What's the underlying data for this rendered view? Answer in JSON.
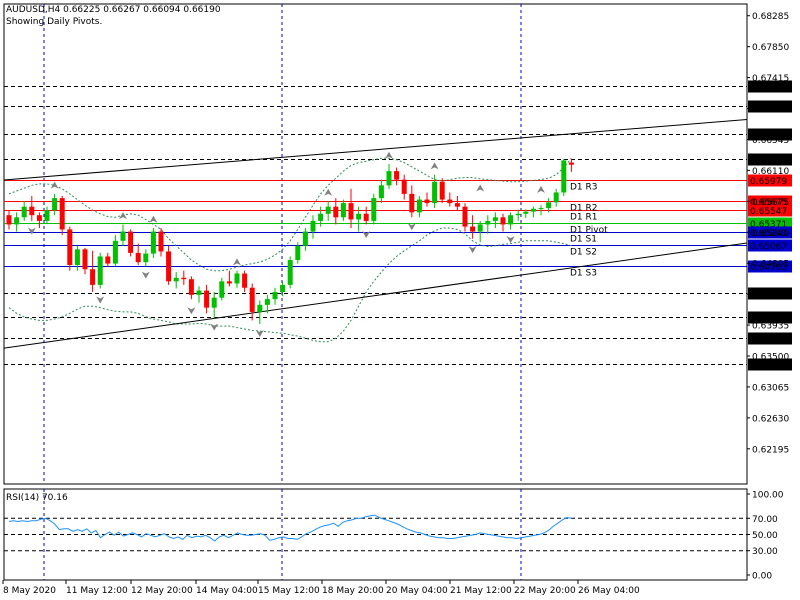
{
  "header": {
    "symbol_line": "AUDUSD,H4  0.66225 0.66267 0.66094 0.66190",
    "indicator_note": "Showing Daily Pivots."
  },
  "rsi_header": "RSI(14) 70.16",
  "colors": {
    "bull": "#00c000",
    "bear": "#ff0000",
    "bands": "#2e8b57",
    "pivot_res": "#ff0000",
    "pivot_mid": "#00c000",
    "pivot_sup": "#0000cc",
    "level_line": "#000000",
    "grid_v": "#0000cc",
    "rsi_line": "#1e90ff",
    "fractal": "#808080"
  },
  "chart_data": [
    {
      "type": "candlestick",
      "title": "AUDUSD,H4",
      "ylim": [
        0.617,
        0.6845
      ],
      "price_ticks": [
        "0.68285",
        "0.67850",
        "0.67415",
        "0.66980",
        "0.66545",
        "0.66110",
        "0.65675",
        "0.65240",
        "0.64805",
        "0.64370",
        "0.63935",
        "0.63500",
        "0.63065",
        "0.62630",
        "0.62195"
      ],
      "x_labels": [
        "8 May 2020",
        "11 May 12:00",
        "12 May 20:00",
        "14 May 04:00",
        "15 May 12:00",
        "18 May 20:00",
        "20 May 04:00",
        "21 May 12:00",
        "22 May 20:00",
        "26 May 04:00"
      ],
      "horizontal_levels": [
        {
          "price": 0.67297,
          "label": "0.67297",
          "kind": "level"
        },
        {
          "price": 0.67018,
          "label": "0.67018",
          "kind": "level"
        },
        {
          "price": 0.66624,
          "label": "0.66624",
          "kind": "level"
        },
        {
          "price": 0.66268,
          "label": "0.66268",
          "kind": "level"
        },
        {
          "price": 0.65979,
          "label": "0.65979",
          "kind": "res",
          "name": "D1 R3"
        },
        {
          "price": 0.65675,
          "label": "0.65675",
          "kind": "res",
          "name": "D1 R2"
        },
        {
          "price": 0.65547,
          "label": "0.65547",
          "kind": "res",
          "name": "D1 R1"
        },
        {
          "price": 0.65371,
          "label": "0.65371",
          "kind": "mid",
          "name": "D1 Pivot"
        },
        {
          "price": 0.65243,
          "label": "0.65243",
          "kind": "sup",
          "name": "D1 S1"
        },
        {
          "price": 0.65067,
          "label": "0.65067",
          "kind": "sup",
          "name": "D1 S2"
        },
        {
          "price": 0.64763,
          "label": "0.64763",
          "kind": "sup",
          "name": "D1 S3"
        },
        {
          "price": 0.64387,
          "label": "0.64387",
          "kind": "level"
        },
        {
          "price": 0.64047,
          "label": "0.64047",
          "kind": "level"
        },
        {
          "price": 0.63758,
          "label": "0.63758",
          "kind": "level"
        },
        {
          "price": 0.63384,
          "label": "0.63384",
          "kind": "level"
        }
      ],
      "trendlines": [
        {
          "name": "upper-trendline",
          "from": {
            "bar": 0,
            "price": 0.6598
          },
          "to": {
            "bar": 78,
            "price": 0.6666
          }
        },
        {
          "name": "lower-trendline",
          "from": {
            "bar": 0,
            "price": 0.6362
          },
          "to": {
            "bar": 78,
            "price": 0.648
          }
        }
      ],
      "candles": [
        [
          0.6548,
          0.6555,
          0.6528,
          0.6535
        ],
        [
          0.6535,
          0.6552,
          0.6525,
          0.6545
        ],
        [
          0.6545,
          0.6568,
          0.654,
          0.656
        ],
        [
          0.656,
          0.6575,
          0.654,
          0.6548
        ],
        [
          0.6548,
          0.6552,
          0.653,
          0.654
        ],
        [
          0.654,
          0.656,
          0.6536,
          0.6555
        ],
        [
          0.6555,
          0.6578,
          0.6548,
          0.6572
        ],
        [
          0.6572,
          0.6575,
          0.652,
          0.6528
        ],
        [
          0.6528,
          0.6532,
          0.647,
          0.6478
        ],
        [
          0.6478,
          0.6505,
          0.647,
          0.65
        ],
        [
          0.65,
          0.6502,
          0.6465,
          0.6472
        ],
        [
          0.6472,
          0.6498,
          0.644,
          0.645
        ],
        [
          0.645,
          0.6495,
          0.6445,
          0.649
        ],
        [
          0.649,
          0.6495,
          0.6475,
          0.648
        ],
        [
          0.648,
          0.652,
          0.6476,
          0.6512
        ],
        [
          0.6512,
          0.6535,
          0.6505,
          0.6525
        ],
        [
          0.6525,
          0.6528,
          0.649,
          0.6495
        ],
        [
          0.6495,
          0.6508,
          0.6478,
          0.6482
        ],
        [
          0.6482,
          0.65,
          0.6476,
          0.6494
        ],
        [
          0.6494,
          0.653,
          0.6488,
          0.6525
        ],
        [
          0.6525,
          0.653,
          0.649,
          0.6497
        ],
        [
          0.6497,
          0.6505,
          0.645,
          0.6455
        ],
        [
          0.6455,
          0.6468,
          0.6445,
          0.646
        ],
        [
          0.646,
          0.647,
          0.645,
          0.6458
        ],
        [
          0.6458,
          0.6462,
          0.643,
          0.6436
        ],
        [
          0.6436,
          0.6448,
          0.6425,
          0.6442
        ],
        [
          0.6442,
          0.645,
          0.641,
          0.6418
        ],
        [
          0.6418,
          0.644,
          0.6403,
          0.6432
        ],
        [
          0.6432,
          0.646,
          0.6428,
          0.6455
        ],
        [
          0.6455,
          0.647,
          0.6448,
          0.6452
        ],
        [
          0.6452,
          0.647,
          0.6446,
          0.6466
        ],
        [
          0.6466,
          0.647,
          0.644,
          0.6446
        ],
        [
          0.6446,
          0.6452,
          0.64,
          0.6412
        ],
        [
          0.6412,
          0.6428,
          0.6395,
          0.6422
        ],
        [
          0.6422,
          0.6436,
          0.641,
          0.643
        ],
        [
          0.643,
          0.6446,
          0.6422,
          0.644
        ],
        [
          0.644,
          0.6455,
          0.6434,
          0.645
        ],
        [
          0.645,
          0.649,
          0.6445,
          0.6485
        ],
        [
          0.6485,
          0.651,
          0.648,
          0.6505
        ],
        [
          0.6505,
          0.653,
          0.6498,
          0.6525
        ],
        [
          0.6525,
          0.6548,
          0.6515,
          0.654
        ],
        [
          0.654,
          0.656,
          0.6532,
          0.655
        ],
        [
          0.655,
          0.6568,
          0.654,
          0.656
        ],
        [
          0.656,
          0.6572,
          0.6535,
          0.6545
        ],
        [
          0.6545,
          0.657,
          0.654,
          0.6565
        ],
        [
          0.6565,
          0.6585,
          0.653,
          0.6542
        ],
        [
          0.6542,
          0.656,
          0.6525,
          0.655
        ],
        [
          0.655,
          0.656,
          0.6535,
          0.654
        ],
        [
          0.654,
          0.6578,
          0.6535,
          0.6572
        ],
        [
          0.6572,
          0.6598,
          0.6565,
          0.659
        ],
        [
          0.659,
          0.662,
          0.6585,
          0.661
        ],
        [
          0.661,
          0.6615,
          0.659,
          0.6598
        ],
        [
          0.6598,
          0.6605,
          0.657,
          0.6578
        ],
        [
          0.6578,
          0.659,
          0.6545,
          0.6552
        ],
        [
          0.6552,
          0.6575,
          0.6545,
          0.657
        ],
        [
          0.657,
          0.658,
          0.656,
          0.6565
        ],
        [
          0.6565,
          0.6605,
          0.6558,
          0.6595
        ],
        [
          0.6595,
          0.66,
          0.6565,
          0.657
        ],
        [
          0.657,
          0.658,
          0.656,
          0.6565
        ],
        [
          0.6565,
          0.6575,
          0.6555,
          0.656
        ],
        [
          0.656,
          0.6565,
          0.6525,
          0.6532
        ],
        [
          0.6532,
          0.6548,
          0.6515,
          0.6525
        ],
        [
          0.6525,
          0.654,
          0.651,
          0.6535
        ],
        [
          0.6535,
          0.6548,
          0.6522,
          0.654
        ],
        [
          0.654,
          0.6552,
          0.653,
          0.6545
        ],
        [
          0.6545,
          0.655,
          0.6525,
          0.6535
        ],
        [
          0.6535,
          0.6552,
          0.6528,
          0.6548
        ],
        [
          0.6548,
          0.6556,
          0.654,
          0.655
        ],
        [
          0.655,
          0.6556,
          0.6544,
          0.6553
        ],
        [
          0.6553,
          0.656,
          0.6545,
          0.6557
        ],
        [
          0.6557,
          0.6562,
          0.6548,
          0.6558
        ],
        [
          0.6558,
          0.6572,
          0.6552,
          0.6566
        ],
        [
          0.6566,
          0.6585,
          0.656,
          0.658
        ],
        [
          0.658,
          0.6627,
          0.6575,
          0.6625
        ],
        [
          0.6622,
          0.6627,
          0.6609,
          0.6619
        ]
      ],
      "fractals_up": [
        {
          "bar": 6,
          "price": 0.6584
        },
        {
          "bar": 15,
          "price": 0.6541
        },
        {
          "bar": 19,
          "price": 0.6536
        },
        {
          "bar": 30,
          "price": 0.6476
        },
        {
          "bar": 42,
          "price": 0.6574
        },
        {
          "bar": 50,
          "price": 0.6626
        },
        {
          "bar": 56,
          "price": 0.6611
        },
        {
          "bar": 62,
          "price": 0.658
        },
        {
          "bar": 70,
          "price": 0.6578
        }
      ],
      "fractals_down": [
        {
          "bar": 3,
          "price": 0.6532
        },
        {
          "bar": 12,
          "price": 0.6435
        },
        {
          "bar": 18,
          "price": 0.647
        },
        {
          "bar": 24,
          "price": 0.642
        },
        {
          "bar": 27,
          "price": 0.6397
        },
        {
          "bar": 33,
          "price": 0.6388
        },
        {
          "bar": 47,
          "price": 0.6527
        },
        {
          "bar": 53,
          "price": 0.6538
        },
        {
          "bar": 61,
          "price": 0.6506
        },
        {
          "bar": 66,
          "price": 0.652
        }
      ],
      "bands": {
        "upper": [
          0.6578,
          0.6582,
          0.6586,
          0.659,
          0.6592,
          0.6592,
          0.659,
          0.6585,
          0.6578,
          0.657,
          0.6562,
          0.6555,
          0.655,
          0.6546,
          0.6545,
          0.6548,
          0.655,
          0.6548,
          0.6542,
          0.6535,
          0.6528,
          0.6515,
          0.6505,
          0.6495,
          0.6485,
          0.6478,
          0.6472,
          0.647,
          0.647,
          0.6472,
          0.6475,
          0.6478,
          0.648,
          0.6482,
          0.6486,
          0.6492,
          0.65,
          0.6512,
          0.6528,
          0.6545,
          0.6562,
          0.6578,
          0.659,
          0.66,
          0.661,
          0.6618,
          0.6622,
          0.6624,
          0.6626,
          0.6628,
          0.6628,
          0.6626,
          0.6622,
          0.6616,
          0.661,
          0.6604,
          0.6598,
          0.6596,
          0.6598,
          0.66,
          0.6601,
          0.6601,
          0.6599,
          0.6598,
          0.6597,
          0.6596,
          0.6595,
          0.6595,
          0.6596,
          0.6597,
          0.6598,
          0.66,
          0.6605,
          0.6615,
          0.6628
        ],
        "lower": [
          0.6418,
          0.641,
          0.6405,
          0.6402,
          0.64,
          0.64,
          0.6402,
          0.6405,
          0.641,
          0.6416,
          0.642,
          0.642,
          0.6418,
          0.6415,
          0.6413,
          0.6412,
          0.6412,
          0.641,
          0.6405,
          0.6402,
          0.64,
          0.6398,
          0.6395,
          0.6395,
          0.6395,
          0.6396,
          0.6395,
          0.6392,
          0.6392,
          0.6392,
          0.639,
          0.6388,
          0.6386,
          0.6385,
          0.6384,
          0.6383,
          0.6382,
          0.638,
          0.6378,
          0.6375,
          0.6372,
          0.637,
          0.637,
          0.6375,
          0.6385,
          0.64,
          0.642,
          0.644,
          0.6455,
          0.6468,
          0.648,
          0.649,
          0.6498,
          0.6505,
          0.6512,
          0.652,
          0.6526,
          0.653,
          0.653,
          0.6528,
          0.6522,
          0.6512,
          0.6506,
          0.6504,
          0.6505,
          0.6507,
          0.6508,
          0.651,
          0.6512,
          0.6512,
          0.6512,
          0.6512,
          0.651,
          0.6508,
          0.6505
        ]
      }
    },
    {
      "type": "line",
      "title": "RSI(14) 70.16",
      "ylim": [
        0,
        100
      ],
      "y_ticks": [
        "100.00",
        "70.00",
        "50.00",
        "30.00",
        "0.00"
      ],
      "guide_levels": [
        70,
        50,
        30
      ],
      "series": [
        {
          "values": [
            66,
            67,
            66,
            67,
            66,
            67,
            67,
            69,
            70,
            67,
            63,
            56,
            57,
            57,
            54,
            56,
            54,
            57,
            52,
            55,
            46,
            50,
            53,
            49,
            53,
            48,
            50,
            52,
            50,
            47,
            51,
            49,
            47,
            49,
            51,
            47,
            45,
            47,
            44,
            49,
            46,
            48,
            47,
            49,
            46,
            42,
            47,
            49,
            46,
            49,
            52,
            50,
            49,
            49,
            50,
            51,
            49,
            43,
            44,
            46,
            47,
            45,
            45,
            44,
            47,
            51,
            53,
            56,
            59,
            61,
            62,
            64,
            60,
            65,
            67,
            68,
            70,
            70,
            72,
            73,
            74,
            71,
            69,
            67,
            65,
            63,
            60,
            57,
            55,
            53,
            52,
            50,
            48,
            47,
            46,
            46,
            45,
            45,
            46,
            47,
            48,
            49,
            50,
            52,
            51,
            50,
            49,
            48,
            47,
            46,
            46,
            45,
            46,
            47,
            48,
            49,
            50,
            52,
            55,
            60,
            64,
            68,
            71,
            70
          ]
        }
      ]
    }
  ]
}
